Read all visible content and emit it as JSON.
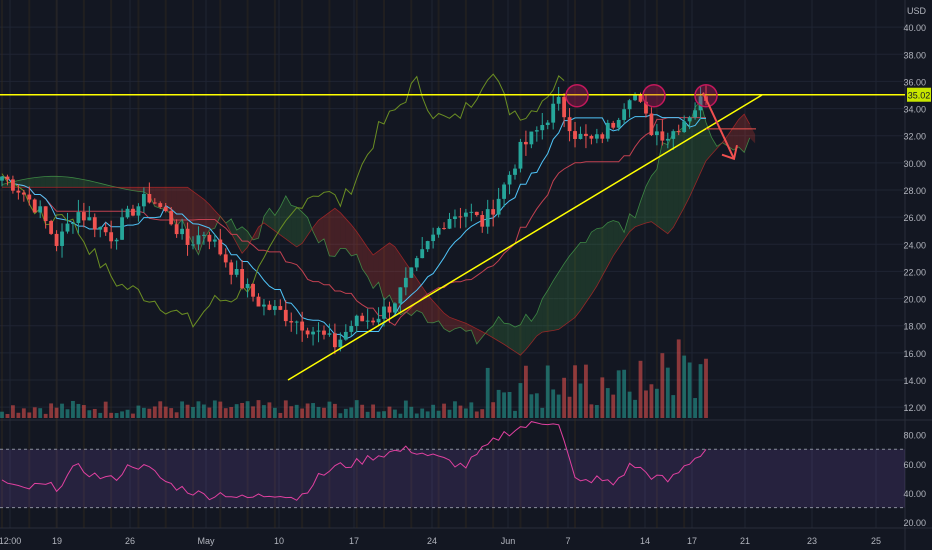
{
  "currency": "USD",
  "price_label": "35.02",
  "colors": {
    "background": "#131722",
    "grid": "#1f2433",
    "up": "#26a69a",
    "down": "#ef5350",
    "axis_text": "#b2b5be",
    "resistance": "#ffff00",
    "trendline": "#ffff00",
    "rsi": "#e040a0",
    "rsi_band": "#7e57c2",
    "arrow": "#f05050",
    "highlight_circle": "#c2185b",
    "kijun": "#c04050",
    "tenkan": "#4fc3f7",
    "chikou": "#6b8e23"
  },
  "chart_data": [
    {
      "type": "candlestick",
      "panel": "price",
      "currency": "USD",
      "x_labels": [
        "12:00",
        "19",
        "26",
        "May",
        "10",
        "17",
        "24",
        "Jun",
        "7",
        "14",
        "17",
        "21",
        "23",
        "25"
      ],
      "y_ticks": [
        12.0,
        14.0,
        16.0,
        18.0,
        20.0,
        22.0,
        24.0,
        26.0,
        28.0,
        30.0,
        32.0,
        34.0,
        36.0,
        38.0,
        40.0
      ],
      "ylim": [
        11.2,
        42.0
      ],
      "last_price": 35.02,
      "resistance_level": 35.02,
      "grid": true,
      "price_series": {
        "anchors": [
          29.0,
          28.0,
          26.5,
          24.0,
          26.5,
          25.5,
          24.5,
          26.5,
          27.5,
          26.0,
          24.0,
          25.0,
          23.0,
          21.0,
          19.5,
          19.0,
          18.3,
          17.5,
          16.6,
          18.3,
          18.5,
          19.5,
          21.5,
          24.0,
          26.0,
          26.5,
          25.5,
          28.0,
          31.0,
          32.5,
          34.5,
          32.0,
          31.5,
          33.0,
          35.5,
          32.5,
          32.0,
          33.5,
          35.0
        ],
        "approx_sessions": 130
      },
      "trendline": {
        "from_price": 14.0,
        "to_price": 34.5
      },
      "indicators": [
        "Ichimoku cloud",
        "Tenkan line",
        "Kijun line",
        "Lagging span",
        "Volume"
      ]
    },
    {
      "type": "bar",
      "panel": "volume",
      "series": [
        {
          "values": []
        }
      ],
      "note": ""
    },
    {
      "type": "line",
      "panel": "rsi",
      "y_ticks": [
        20.0,
        40.0,
        60.0,
        80.0
      ],
      "ylim": [
        16,
        90
      ],
      "band": [
        30,
        70
      ],
      "series": [
        {
          "anchors": [
            48,
            42,
            45,
            44,
            58,
            52,
            49,
            60,
            56,
            46,
            42,
            38,
            40,
            36,
            38,
            40,
            36,
            50,
            58,
            60,
            65,
            68,
            70,
            66,
            62,
            58,
            70,
            80,
            85,
            88,
            90,
            46,
            50,
            46,
            60,
            52,
            48,
            60,
            70
          ]
        }
      ]
    }
  ]
}
